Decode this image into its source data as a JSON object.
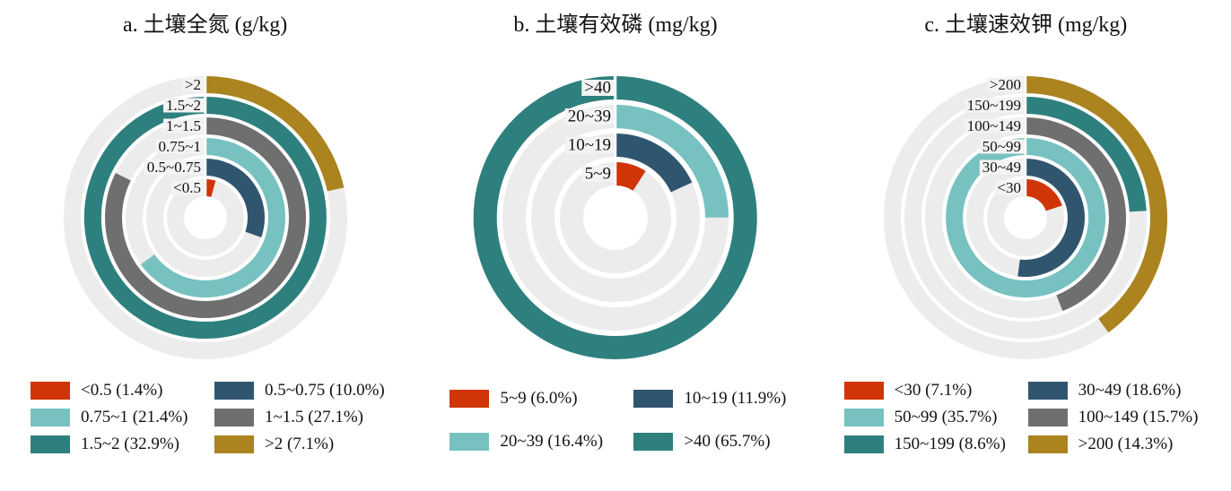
{
  "palette": {
    "track": "#ECECEC",
    "red": "#D03508",
    "navy": "#30566F",
    "light_teal": "#77C2C0",
    "teal": "#2E807E",
    "gray": "#6F6F6F",
    "gold": "#AB831F"
  },
  "chart_data": [
    {
      "type": "bar",
      "variant": "circular-concentric-rings",
      "panel": "a",
      "title": "a. 土壤全氮 (g/kg)",
      "unit": "g/kg",
      "start_angle_deg": 0,
      "sweep_rule": "value / max(values) * 360",
      "ring_order": "inner_to_outer",
      "categories": [
        {
          "label": "<0.5",
          "value": 1.4,
          "legend": "<0.5 (1.4%)",
          "color": "#D03508"
        },
        {
          "label": "0.5~0.75",
          "value": 10.0,
          "legend": "0.5~0.75 (10.0%)",
          "color": "#30566F"
        },
        {
          "label": "0.75~1",
          "value": 21.4,
          "legend": "0.75~1 (21.4%)",
          "color": "#77C2C0"
        },
        {
          "label": "1~1.5",
          "value": 27.1,
          "legend": "1~1.5 (27.1%)",
          "color": "#6F6F6F"
        },
        {
          "label": "1.5~2",
          "value": 32.9,
          "legend": "1.5~2 (32.9%)",
          "color": "#2E807E"
        },
        {
          "label": ">2",
          "value": 7.1,
          "legend": ">2 (7.1%)",
          "color": "#AB831F"
        }
      ]
    },
    {
      "type": "bar",
      "variant": "circular-concentric-rings",
      "panel": "b",
      "title": "b. 土壤有效磷 (mg/kg)",
      "unit": "mg/kg",
      "start_angle_deg": 0,
      "sweep_rule": "value / max(values) * 360",
      "ring_order": "inner_to_outer",
      "categories": [
        {
          "label": "5~9",
          "value": 6.0,
          "legend": "5~9 (6.0%)",
          "color": "#D03508"
        },
        {
          "label": "10~19",
          "value": 11.9,
          "legend": "10~19 (11.9%)",
          "color": "#30566F"
        },
        {
          "label": "20~39",
          "value": 16.4,
          "legend": "20~39 (16.4%)",
          "color": "#77C2C0"
        },
        {
          "label": ">40",
          "value": 65.7,
          "legend": ">40 (65.7%)",
          "color": "#2E807E"
        }
      ]
    },
    {
      "type": "bar",
      "variant": "circular-concentric-rings",
      "panel": "c",
      "title": "c. 土壤速效钾 (mg/kg)",
      "unit": "mg/kg",
      "start_angle_deg": 0,
      "sweep_rule": "value / max(values) * 360",
      "ring_order": "inner_to_outer",
      "categories": [
        {
          "label": "<30",
          "value": 7.1,
          "legend": "<30 (7.1%)",
          "color": "#D03508"
        },
        {
          "label": "30~49",
          "value": 18.6,
          "legend": "30~49 (18.6%)",
          "color": "#30566F"
        },
        {
          "label": "50~99",
          "value": 35.7,
          "legend": "50~99 (35.7%)",
          "color": "#77C2C0"
        },
        {
          "label": "100~149",
          "value": 15.7,
          "legend": "100~149 (15.7%)",
          "color": "#6F6F6F"
        },
        {
          "label": "150~199",
          "value": 8.6,
          "legend": "150~199 (8.6%)",
          "color": "#2E807E"
        },
        {
          "label": ">200",
          "value": 14.3,
          "legend": ">200 (14.3%)",
          "color": "#AB831F"
        }
      ]
    }
  ]
}
